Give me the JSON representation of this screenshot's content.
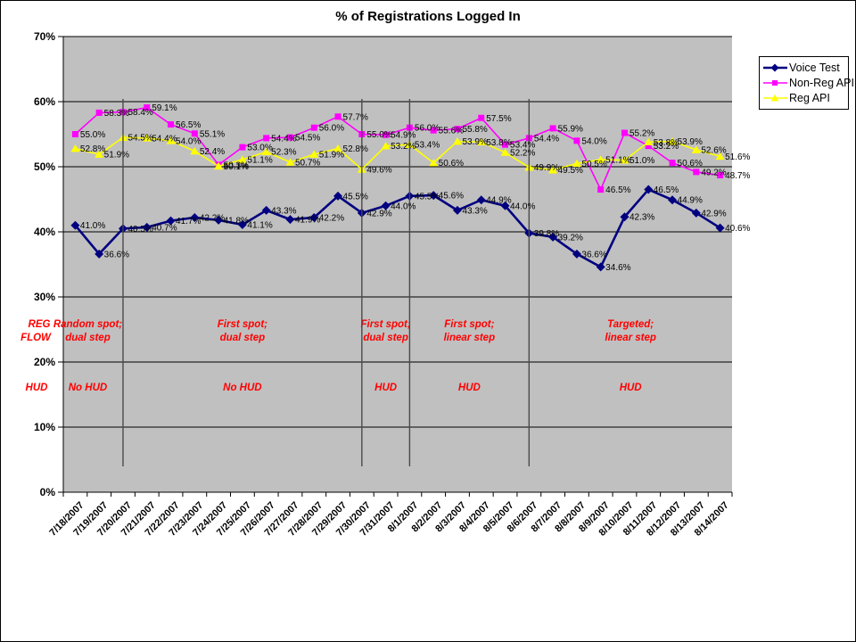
{
  "title": "% of Registrations Logged In",
  "legend": {
    "position": "right",
    "items": [
      "Voice Test",
      "Non-Reg API",
      "Reg API"
    ]
  },
  "chart_data": {
    "type": "line",
    "title": "% of Registrations Logged In",
    "x": [
      "7/18/2007",
      "7/19/2007",
      "7/20/2007",
      "7/21/2007",
      "7/22/2007",
      "7/23/2007",
      "7/24/2007",
      "7/25/2007",
      "7/26/2007",
      "7/27/2007",
      "7/28/2007",
      "7/29/2007",
      "7/30/2007",
      "7/31/2007",
      "8/1/2007",
      "8/2/2007",
      "8/3/2007",
      "8/4/2007",
      "8/5/2007",
      "8/6/2007",
      "8/7/2007",
      "8/8/2007",
      "8/9/2007",
      "8/10/2007",
      "8/11/2007",
      "8/12/2007",
      "8/13/2007",
      "8/14/2007"
    ],
    "series": [
      {
        "name": "Voice Test",
        "color": "#000080",
        "marker": "diamond",
        "values": [
          41.0,
          36.6,
          40.5,
          40.7,
          41.7,
          42.2,
          41.8,
          41.1,
          43.3,
          41.9,
          42.2,
          45.5,
          42.9,
          44.0,
          45.5,
          45.6,
          43.3,
          44.9,
          44.0,
          39.8,
          39.2,
          36.6,
          34.6,
          42.3,
          46.5,
          44.9,
          42.9,
          40.6
        ]
      },
      {
        "name": "Non-Reg API",
        "color": "#FF00FF",
        "marker": "square",
        "values": [
          55.0,
          58.3,
          58.4,
          59.1,
          56.5,
          55.1,
          50.3,
          53.0,
          54.4,
          54.5,
          56.0,
          57.7,
          55.0,
          54.9,
          56.0,
          55.6,
          55.8,
          57.5,
          53.4,
          54.4,
          55.9,
          54.0,
          46.5,
          55.2,
          53.2,
          50.6,
          49.2,
          48.7
        ]
      },
      {
        "name": "Reg API",
        "color": "#FFFF00",
        "marker": "triangle",
        "values": [
          52.8,
          51.9,
          54.5,
          54.4,
          54.0,
          52.4,
          50.1,
          51.1,
          52.3,
          50.7,
          51.9,
          52.8,
          49.6,
          53.2,
          53.4,
          50.6,
          53.9,
          53.8,
          52.2,
          49.9,
          49.5,
          50.5,
          51.1,
          51.0,
          53.8,
          53.9,
          52.6,
          51.6
        ]
      }
    ],
    "ylim": [
      0,
      70
    ],
    "y_ticks": [
      "0%",
      "10%",
      "20%",
      "30%",
      "40%",
      "50%",
      "60%",
      "70%"
    ],
    "grid": true,
    "data_labels": true,
    "plot_bg": "#C0C0C0",
    "annotations": {
      "color": "#FF0000",
      "row_labels": {
        "flow_line1": "REG",
        "flow_line2": "FLOW",
        "hud": "HUD"
      },
      "dividers_at_dates": [
        "7/20/2007",
        "7/30/2007",
        "8/1/2007",
        "8/6/2007"
      ],
      "regions": [
        {
          "flow": [
            "Random spot;",
            "dual step"
          ],
          "hud": "No HUD"
        },
        {
          "flow": [
            "First spot;",
            "dual step"
          ],
          "hud": "No HUD"
        },
        {
          "flow": [
            "First spot;",
            "dual step"
          ],
          "hud": "HUD"
        },
        {
          "flow": [
            "First spot;",
            "linear step"
          ],
          "hud": "HUD"
        },
        {
          "flow": [
            "Targeted;",
            "linear step"
          ],
          "hud": "HUD"
        }
      ]
    }
  }
}
